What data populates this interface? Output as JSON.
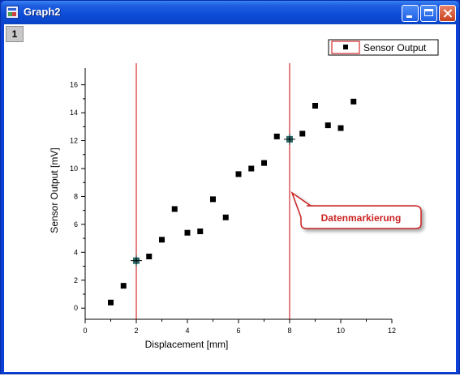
{
  "window": {
    "title": "Graph2",
    "layer_tab": "1"
  },
  "legend": {
    "label": "Sensor Output",
    "placement": "top-right"
  },
  "annotation": {
    "label": "Datenmarkierung"
  },
  "colors": {
    "title_bar": "#0c4bd8",
    "marker_line": "#cc0000",
    "callout_border": "#cc2222",
    "data_point": "#000000",
    "marked_point": "#2a6a6a"
  },
  "chart_data": {
    "type": "scatter",
    "xlabel": "Displacement [mm]",
    "ylabel": "Sensor Output [mV]",
    "xlim": [
      0,
      12
    ],
    "ylim": [
      -0.8,
      17.2
    ],
    "xticks": [
      0,
      2,
      4,
      6,
      8,
      10,
      12
    ],
    "yticks": [
      0,
      2,
      4,
      6,
      8,
      10,
      12,
      14,
      16
    ],
    "grid": false,
    "series": [
      {
        "name": "Sensor Output",
        "x": [
          1,
          1.5,
          2,
          2.5,
          3,
          3.5,
          4,
          4.5,
          5,
          5.5,
          6,
          6.5,
          7,
          7.5,
          8,
          8.5,
          9,
          9.5,
          10,
          10.5
        ],
        "y": [
          0.4,
          1.6,
          3.4,
          3.7,
          4.9,
          7.1,
          5.4,
          5.5,
          7.8,
          6.5,
          9.6,
          10.0,
          10.4,
          12.3,
          12.1,
          12.5,
          14.5,
          13.1,
          12.9,
          14.8
        ]
      }
    ],
    "vertical_markers": [
      2,
      8
    ],
    "marked_points": [
      {
        "x": 2,
        "y": 3.4
      },
      {
        "x": 8,
        "y": 12.1
      }
    ]
  }
}
